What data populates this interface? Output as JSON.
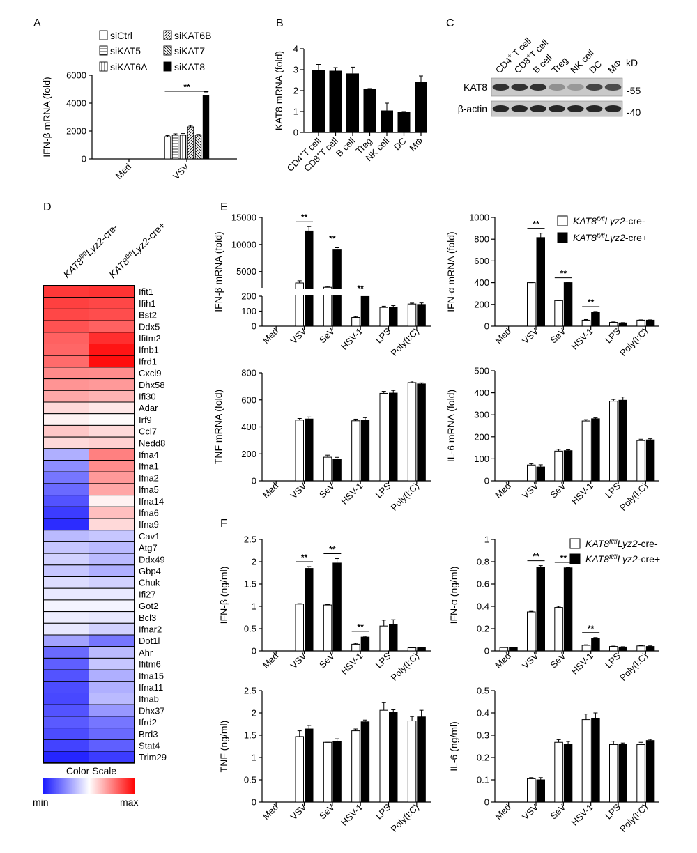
{
  "colors": {
    "siCtrl": "#ffffff",
    "siKAT8": "#000000",
    "heat_min": "#1a1aff",
    "heat_mid": "#ffffff",
    "heat_max": "#ff0000"
  },
  "panels": {
    "A": {
      "letter": "A"
    },
    "B": {
      "letter": "B"
    },
    "C": {
      "letter": "C"
    },
    "D": {
      "letter": "D"
    },
    "E": {
      "letter": "E"
    },
    "F": {
      "letter": "F"
    }
  },
  "heatmap": {
    "color_scale_title": "Color Scale",
    "min_label": "min",
    "max_label": "max",
    "columns": [
      "KAT8fl/flLyz2-cre-",
      "KAT8fl/flLyz2-cre+"
    ],
    "column_parts": [
      {
        "main": "KAT8",
        "sup": "fl/fl",
        "italic": "Lyz2",
        "rest": "-cre-"
      },
      {
        "main": "KAT8",
        "sup": "fl/fl",
        "italic": "Lyz2",
        "rest": "-cre+"
      }
    ]
  },
  "western_blot": {
    "lanes": [
      "CD4+ T cell",
      "CD8+T cell",
      "B cell",
      "Treg",
      "NK cell",
      "DC",
      "MΦ"
    ],
    "lane_parts": [
      {
        "a": "CD4",
        "sup": "+",
        "b": " T cell"
      },
      {
        "a": "CD8",
        "sup": "+",
        "b": "T cell"
      },
      {
        "a": "B cell",
        "sup": "",
        "b": ""
      },
      {
        "a": "Treg",
        "sup": "",
        "b": ""
      },
      {
        "a": "NK cell",
        "sup": "",
        "b": ""
      },
      {
        "a": "DC",
        "sup": "",
        "b": ""
      },
      {
        "a": "MΦ",
        "sup": "",
        "b": ""
      }
    ],
    "kd_label": "kD",
    "rows": [
      {
        "label": "KAT8",
        "marker": "-55",
        "intensity": [
          0.85,
          0.85,
          0.85,
          0.35,
          0.3,
          0.75,
          0.7
        ]
      },
      {
        "label": "β-actin",
        "marker": "-40",
        "intensity": [
          0.9,
          0.9,
          0.9,
          0.9,
          0.9,
          0.9,
          0.9
        ]
      }
    ]
  },
  "chart_data": [
    {
      "id": "A",
      "type": "bar",
      "ylabel": "IFN-β mRNA (fold)",
      "ylim": [
        0,
        6000
      ],
      "yticks": [
        0,
        2000,
        4000,
        6000
      ],
      "categories": [
        "Med",
        "VSV"
      ],
      "series": [
        {
          "name": "siCtrl",
          "values": [
            0,
            1600
          ],
          "err": [
            0,
            80
          ]
        },
        {
          "name": "siKAT5",
          "values": [
            0,
            1700
          ],
          "err": [
            0,
            100
          ]
        },
        {
          "name": "siKAT6A",
          "values": [
            0,
            1700
          ],
          "err": [
            0,
            120
          ]
        },
        {
          "name": "siKAT6B",
          "values": [
            0,
            2300
          ],
          "err": [
            0,
            100
          ]
        },
        {
          "name": "siKAT7",
          "values": [
            0,
            1700
          ],
          "err": [
            0,
            60
          ]
        },
        {
          "name": "siKAT8",
          "values": [
            0,
            4550
          ],
          "err": [
            0,
            250
          ]
        }
      ],
      "significance": [
        {
          "category": "VSV",
          "from": 0,
          "to": 5,
          "label": "**"
        }
      ],
      "legend": [
        "siCtrl",
        "siKAT6B",
        "siKAT5",
        "siKAT7",
        "siKAT6A",
        "siKAT8"
      ]
    },
    {
      "id": "B",
      "type": "bar",
      "ylabel": "KAT8 mRNA (fold)",
      "ylim": [
        0,
        4
      ],
      "yticks": [
        0,
        1,
        2,
        3,
        4
      ],
      "categories": [
        "CD4+T cell",
        "CD8+T cell",
        "B cell",
        "Treg",
        "NK cell",
        "DC",
        "MΦ"
      ],
      "category_parts": [
        {
          "a": "CD4",
          "sup": "+",
          "b": "T cell"
        },
        {
          "a": "CD8",
          "sup": "+",
          "b": "T cell"
        },
        {
          "a": "B cell",
          "sup": "",
          "b": ""
        },
        {
          "a": "Treg",
          "sup": "",
          "b": ""
        },
        {
          "a": "NK cell",
          "sup": "",
          "b": ""
        },
        {
          "a": "DC",
          "sup": "",
          "b": ""
        },
        {
          "a": "MΦ",
          "sup": "",
          "b": ""
        }
      ],
      "values": [
        3.0,
        2.95,
        2.82,
        2.1,
        1.05,
        1.0,
        2.4
      ],
      "err": [
        0.25,
        0.15,
        0.3,
        0,
        0.35,
        0,
        0.3
      ]
    },
    {
      "id": "D",
      "type": "heatmap",
      "rows": [
        "Ifit1",
        "Ifih1",
        "Bst2",
        "Ddx5",
        "Ifitm2",
        "Ifnb1",
        "Ifrd1",
        "Cxcl9",
        "Dhx58",
        "Ifi30",
        "Adar",
        "Irf9",
        "Ccl7",
        "Nedd8",
        "Ifna4",
        "Ifna1",
        "Ifna2",
        "Ifna5",
        "Ifna14",
        "Ifna6",
        "Ifna9",
        "Cav1",
        "Atg7",
        "Ddx49",
        "Gbp4",
        "Chuk",
        "Ifi27",
        "Got2",
        "Bcl3",
        "Ifnar2",
        "Dot1l",
        "Ahr",
        "Ifitm6",
        "Ifna15",
        "Ifna11",
        "Ifnab",
        "Dhx37",
        "Ifrd2",
        "Brd3",
        "Stat4",
        "Trim29"
      ],
      "columns": [
        "KAT8fl/flLyz2-cre-",
        "KAT8fl/flLyz2-cre+"
      ],
      "values": [
        [
          0.78,
          0.8
        ],
        [
          0.75,
          0.72
        ],
        [
          0.72,
          0.7
        ],
        [
          0.68,
          0.62
        ],
        [
          0.62,
          0.82
        ],
        [
          0.6,
          0.92
        ],
        [
          0.58,
          0.95
        ],
        [
          0.46,
          0.45
        ],
        [
          0.42,
          0.4
        ],
        [
          0.34,
          0.3
        ],
        [
          0.15,
          0.1
        ],
        [
          0.05,
          0.02
        ],
        [
          0.22,
          0.15
        ],
        [
          0.15,
          0.18
        ],
        [
          -0.35,
          0.5
        ],
        [
          -0.5,
          0.45
        ],
        [
          -0.6,
          0.4
        ],
        [
          -0.65,
          0.35
        ],
        [
          -0.75,
          0.05
        ],
        [
          -0.85,
          0.25
        ],
        [
          -0.92,
          0.15
        ],
        [
          -0.3,
          -0.25
        ],
        [
          -0.25,
          -0.3
        ],
        [
          -0.2,
          -0.3
        ],
        [
          -0.25,
          -0.35
        ],
        [
          -0.15,
          -0.2
        ],
        [
          -0.1,
          -0.1
        ],
        [
          -0.05,
          -0.05
        ],
        [
          -0.08,
          -0.1
        ],
        [
          -0.1,
          -0.2
        ],
        [
          -0.4,
          -0.6
        ],
        [
          -0.65,
          -0.3
        ],
        [
          -0.7,
          -0.25
        ],
        [
          -0.75,
          -0.35
        ],
        [
          -0.78,
          -0.35
        ],
        [
          -0.8,
          -0.3
        ],
        [
          -0.75,
          -0.45
        ],
        [
          -0.72,
          -0.6
        ],
        [
          -0.78,
          -0.65
        ],
        [
          -0.82,
          -0.7
        ],
        [
          -0.95,
          -0.85
        ]
      ]
    },
    {
      "id": "E1",
      "type": "bar",
      "broken_axis": true,
      "ylabel": "IFN-β mRNA (fold)",
      "lower_ylim": [
        0,
        200
      ],
      "lower_yticks": [
        0,
        100,
        200
      ],
      "upper_ylim": [
        2000,
        15000
      ],
      "upper_yticks": [
        5000,
        10000,
        15000
      ],
      "categories": [
        "Med",
        "VSV",
        "SeV",
        "HSV-1",
        "LPS",
        "Poly(I:C)"
      ],
      "series": [
        {
          "name": "KAT8fl/flLyz2-cre-",
          "values": [
            0,
            2900,
            2100,
            58,
            125,
            148
          ],
          "err": [
            0,
            400,
            150,
            6,
            8,
            6
          ]
        },
        {
          "name": "KAT8fl/flLyz2-cre+",
          "values": [
            0,
            12500,
            9000,
            198,
            125,
            145
          ],
          "err": [
            0,
            800,
            400,
            5,
            12,
            10
          ]
        }
      ],
      "significance": [
        "VSV",
        "SeV",
        "HSV-1"
      ]
    },
    {
      "id": "E2",
      "type": "bar",
      "ylabel": "IFN-α mRNA (fold)",
      "ylim": [
        0,
        1000
      ],
      "yticks": [
        0,
        200,
        400,
        600,
        800,
        1000
      ],
      "categories": [
        "Med",
        "VSV",
        "SeV",
        "HSV-1",
        "LPS",
        "Poly(I:C)"
      ],
      "series": [
        {
          "name": "KAT8fl/flLyz2-cre-",
          "values": [
            0,
            400,
            235,
            55,
            35,
            55
          ],
          "err": [
            0,
            0,
            0,
            6,
            4,
            3
          ]
        },
        {
          "name": "KAT8fl/flLyz2-cre+",
          "values": [
            0,
            815,
            400,
            130,
            30,
            55
          ],
          "err": [
            0,
            40,
            0,
            5,
            3,
            3
          ]
        }
      ],
      "significance": [
        "VSV",
        "SeV",
        "HSV-1"
      ]
    },
    {
      "id": "E3",
      "type": "bar",
      "ylabel": "TNF mRNA (fold)",
      "ylim": [
        0,
        800
      ],
      "yticks": [
        0,
        200,
        400,
        600,
        800
      ],
      "categories": [
        "Med",
        "VSV",
        "SeV",
        "HSV-1",
        "LPS",
        "Poly(I:C)"
      ],
      "series": [
        {
          "name": "KAT8fl/flLyz2-cre-",
          "values": [
            0,
            450,
            175,
            445,
            648,
            728
          ],
          "err": [
            0,
            12,
            15,
            12,
            15,
            12
          ]
        },
        {
          "name": "KAT8fl/flLyz2-cre+",
          "values": [
            0,
            458,
            162,
            450,
            650,
            718
          ],
          "err": [
            0,
            15,
            12,
            18,
            20,
            8
          ]
        }
      ],
      "significance": []
    },
    {
      "id": "E4",
      "type": "bar",
      "ylabel": "IL-6 mRNA (fold)",
      "ylim": [
        0,
        500
      ],
      "yticks": [
        0,
        100,
        200,
        300,
        400,
        500
      ],
      "categories": [
        "Med",
        "VSV",
        "SeV",
        "HSV-1",
        "LPS",
        "Poly(I:C)"
      ],
      "series": [
        {
          "name": "KAT8fl/flLyz2-cre-",
          "values": [
            0,
            72,
            135,
            272,
            362,
            183
          ],
          "err": [
            0,
            6,
            8,
            6,
            8,
            6
          ]
        },
        {
          "name": "KAT8fl/flLyz2-cre+",
          "values": [
            0,
            63,
            137,
            282,
            366,
            186
          ],
          "err": [
            0,
            10,
            4,
            4,
            15,
            5
          ]
        }
      ],
      "significance": []
    },
    {
      "id": "F1",
      "type": "bar",
      "ylabel": "IFN-β (ng/ml)",
      "ylim": [
        0,
        2.5
      ],
      "yticks": [
        0,
        0.5,
        1.0,
        1.5,
        2.0,
        2.5
      ],
      "categories": [
        "Med",
        "VSV",
        "SeV",
        "HSV-1",
        "LPS",
        "Poly(I:C)"
      ],
      "series": [
        {
          "name": "KAT8fl/flLyz2-cre-",
          "values": [
            0,
            1.05,
            1.03,
            0.15,
            0.56,
            0.07
          ],
          "err": [
            0,
            0.01,
            0.01,
            0.02,
            0.13,
            0.01
          ]
        },
        {
          "name": "KAT8fl/flLyz2-cre+",
          "values": [
            0,
            1.85,
            1.97,
            0.31,
            0.6,
            0.07
          ],
          "err": [
            0,
            0.04,
            0.1,
            0.02,
            0.1,
            0.01
          ]
        }
      ],
      "significance": [
        "VSV",
        "SeV",
        "HSV-1"
      ]
    },
    {
      "id": "F2",
      "type": "bar",
      "ylabel": "IFN-α (ng/ml)",
      "ylim": [
        0,
        1.0
      ],
      "yticks": [
        0,
        0.2,
        0.4,
        0.6,
        0.8,
        1.0
      ],
      "categories": [
        "Med",
        "VSV",
        "SeV",
        "HSV-1",
        "LPS",
        "Poly(I:C)"
      ],
      "series": [
        {
          "name": "KAT8fl/flLyz2-cre-",
          "values": [
            0.03,
            0.35,
            0.39,
            0.05,
            0.04,
            0.045
          ],
          "err": [
            0.003,
            0.005,
            0.01,
            0.005,
            0.003,
            0.005
          ]
        },
        {
          "name": "KAT8fl/flLyz2-cre+",
          "values": [
            0.03,
            0.75,
            0.745,
            0.115,
            0.035,
            0.04
          ],
          "err": [
            0.003,
            0.015,
            0.005,
            0.005,
            0.003,
            0.005
          ]
        }
      ],
      "significance": [
        "VSV",
        "SeV",
        "HSV-1"
      ]
    },
    {
      "id": "F3",
      "type": "bar",
      "ylabel": "TNF (ng/ml)",
      "ylim": [
        0,
        2.5
      ],
      "yticks": [
        0,
        0.5,
        1.0,
        1.5,
        2.0,
        2.5
      ],
      "categories": [
        "Med",
        "VSV",
        "SeV",
        "HSV-1",
        "LPS",
        "Poly(I:C)"
      ],
      "series": [
        {
          "name": "KAT8fl/flLyz2-cre-",
          "values": [
            0,
            1.47,
            1.34,
            1.6,
            2.06,
            1.82
          ],
          "err": [
            0,
            0.13,
            0,
            0.04,
            0.17,
            0.1
          ]
        },
        {
          "name": "KAT8fl/flLyz2-cre+",
          "values": [
            0,
            1.64,
            1.36,
            1.8,
            2.02,
            1.91
          ],
          "err": [
            0,
            0.08,
            0.06,
            0.04,
            0.05,
            0.15
          ]
        }
      ],
      "significance": []
    },
    {
      "id": "F4",
      "type": "bar",
      "ylabel": "IL-6 (ng/ml)",
      "ylim": [
        0,
        0.5
      ],
      "yticks": [
        0,
        0.1,
        0.2,
        0.3,
        0.4,
        0.5
      ],
      "categories": [
        "Med",
        "VSV",
        "SeV",
        "HSV-1",
        "LPS",
        "Poly(I:C)"
      ],
      "series": [
        {
          "name": "KAT8fl/flLyz2-cre-",
          "values": [
            0,
            0.105,
            0.268,
            0.37,
            0.258,
            0.258
          ],
          "err": [
            0,
            0.005,
            0.012,
            0.025,
            0.015,
            0.01
          ]
        },
        {
          "name": "KAT8fl/flLyz2-cre+",
          "values": [
            0,
            0.1,
            0.26,
            0.375,
            0.26,
            0.276
          ],
          "err": [
            0,
            0.01,
            0.012,
            0.025,
            0.005,
            0.005
          ]
        }
      ],
      "significance": []
    }
  ],
  "legend_EF": [
    {
      "main": "KAT8",
      "sup": "fl/fl",
      "italic": "Lyz2",
      "rest": "-cre-"
    },
    {
      "main": "KAT8",
      "sup": "fl/fl",
      "italic": "Lyz2",
      "rest": "-cre+"
    }
  ]
}
